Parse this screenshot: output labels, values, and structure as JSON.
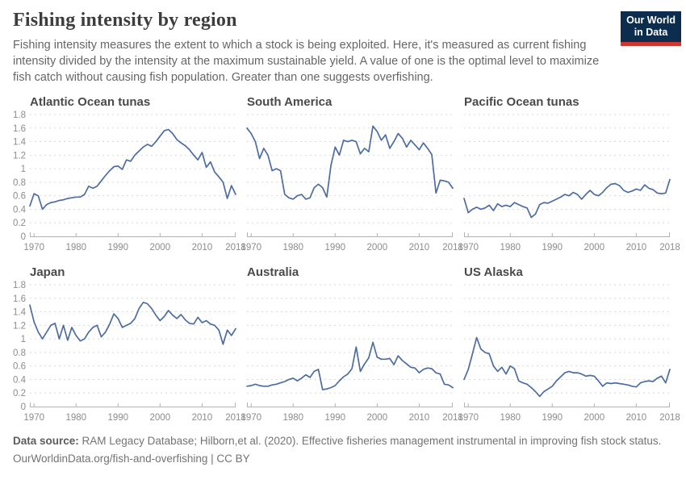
{
  "header": {
    "title": "Fishing intensity by region",
    "logo": {
      "line1": "Our World",
      "line2": "in Data"
    },
    "subtitle": "Fishing intensity measures the extent to which a stock is being exploited. Here, it's measured as current fishing intensity divided by the intensity at the maximum sustainable yield. A value of one is the optimal level to maximize fish catch without causing fish population. Greater than one suggests overfishing."
  },
  "chart_data": {
    "type": "line",
    "x_range": [
      1969,
      2018
    ],
    "x_ticks": [
      1970,
      1980,
      1990,
      2000,
      2010,
      2018
    ],
    "y_ticks": [
      0,
      0.2,
      0.4,
      0.6,
      0.8,
      1,
      1.2,
      1.4,
      1.6,
      1.8
    ],
    "ylim": [
      0,
      1.8
    ],
    "grid": "horizontal-dashed",
    "legend": "none",
    "charts": [
      {
        "title": "Atlantic Ocean tunas",
        "values": [
          0.45,
          0.63,
          0.6,
          0.4,
          0.47,
          0.5,
          0.51,
          0.53,
          0.54,
          0.56,
          0.57,
          0.58,
          0.58,
          0.62,
          0.74,
          0.71,
          0.74,
          0.82,
          0.9,
          0.97,
          1.03,
          1.04,
          0.99,
          1.13,
          1.11,
          1.2,
          1.26,
          1.32,
          1.36,
          1.33,
          1.4,
          1.48,
          1.56,
          1.58,
          1.52,
          1.43,
          1.38,
          1.34,
          1.28,
          1.2,
          1.13,
          1.24,
          1.02,
          1.1,
          0.95,
          0.88,
          0.8,
          0.56,
          0.75,
          0.62
        ]
      },
      {
        "title": "South America",
        "values": [
          1.6,
          1.52,
          1.4,
          1.15,
          1.3,
          1.2,
          0.97,
          1.0,
          0.97,
          0.62,
          0.57,
          0.55,
          0.6,
          0.62,
          0.55,
          0.57,
          0.72,
          0.77,
          0.72,
          0.58,
          1.05,
          1.32,
          1.2,
          1.42,
          1.4,
          1.42,
          1.4,
          1.22,
          1.3,
          1.25,
          1.63,
          1.55,
          1.42,
          1.5,
          1.3,
          1.4,
          1.52,
          1.45,
          1.32,
          1.42,
          1.35,
          1.28,
          1.38,
          1.3,
          1.21,
          0.64,
          0.83,
          0.82,
          0.8,
          0.71
        ]
      },
      {
        "title": "Pacific Ocean tunas",
        "values": [
          0.56,
          0.35,
          0.4,
          0.43,
          0.4,
          0.42,
          0.46,
          0.38,
          0.48,
          0.44,
          0.46,
          0.44,
          0.5,
          0.47,
          0.44,
          0.42,
          0.28,
          0.33,
          0.47,
          0.5,
          0.49,
          0.52,
          0.55,
          0.58,
          0.62,
          0.6,
          0.65,
          0.62,
          0.55,
          0.62,
          0.68,
          0.62,
          0.6,
          0.65,
          0.72,
          0.77,
          0.78,
          0.75,
          0.68,
          0.65,
          0.67,
          0.7,
          0.68,
          0.76,
          0.71,
          0.69,
          0.64,
          0.63,
          0.64,
          0.84
        ]
      },
      {
        "title": "Japan",
        "values": [
          1.5,
          1.25,
          1.1,
          1.0,
          1.1,
          1.2,
          1.23,
          1.0,
          1.2,
          0.98,
          1.17,
          1.05,
          0.97,
          1.0,
          1.1,
          1.17,
          1.2,
          1.03,
          1.1,
          1.22,
          1.37,
          1.3,
          1.17,
          1.2,
          1.23,
          1.3,
          1.45,
          1.54,
          1.52,
          1.45,
          1.35,
          1.27,
          1.33,
          1.42,
          1.35,
          1.3,
          1.36,
          1.28,
          1.23,
          1.22,
          1.32,
          1.24,
          1.27,
          1.22,
          1.2,
          1.13,
          0.92,
          1.13,
          1.05,
          1.15
        ]
      },
      {
        "title": "Australia",
        "values": [
          0.3,
          0.31,
          0.33,
          0.31,
          0.3,
          0.3,
          0.32,
          0.33,
          0.35,
          0.37,
          0.4,
          0.42,
          0.38,
          0.42,
          0.47,
          0.43,
          0.52,
          0.55,
          0.25,
          0.26,
          0.28,
          0.31,
          0.38,
          0.44,
          0.48,
          0.56,
          0.88,
          0.52,
          0.63,
          0.72,
          0.95,
          0.73,
          0.7,
          0.7,
          0.71,
          0.62,
          0.75,
          0.68,
          0.63,
          0.58,
          0.57,
          0.5,
          0.55,
          0.57,
          0.56,
          0.5,
          0.48,
          0.33,
          0.32,
          0.28
        ]
      },
      {
        "title": "US Alaska",
        "values": [
          0.4,
          0.55,
          0.78,
          1.02,
          0.85,
          0.8,
          0.78,
          0.6,
          0.52,
          0.58,
          0.48,
          0.6,
          0.56,
          0.38,
          0.35,
          0.33,
          0.28,
          0.22,
          0.15,
          0.22,
          0.26,
          0.3,
          0.38,
          0.44,
          0.5,
          0.52,
          0.5,
          0.5,
          0.48,
          0.45,
          0.46,
          0.45,
          0.38,
          0.3,
          0.35,
          0.34,
          0.35,
          0.34,
          0.33,
          0.32,
          0.3,
          0.29,
          0.35,
          0.37,
          0.38,
          0.37,
          0.42,
          0.45,
          0.35,
          0.55
        ]
      }
    ]
  },
  "footer": {
    "source_label": "Data source:",
    "source_text": " RAM Legacy Database; Hilborn,et al. (2020). Effective fisheries management instrumental in improving fish stock status.",
    "link_line": "OurWorldinData.org/fish-and-overfishing | CC BY"
  },
  "colors": {
    "line": "#4c6ca2",
    "grid": "#dadada",
    "axis": "#b3b3b3",
    "tick_label": "#8c8c8c",
    "logo_bg": "#0c2d4e",
    "logo_red": "#cc3732"
  }
}
